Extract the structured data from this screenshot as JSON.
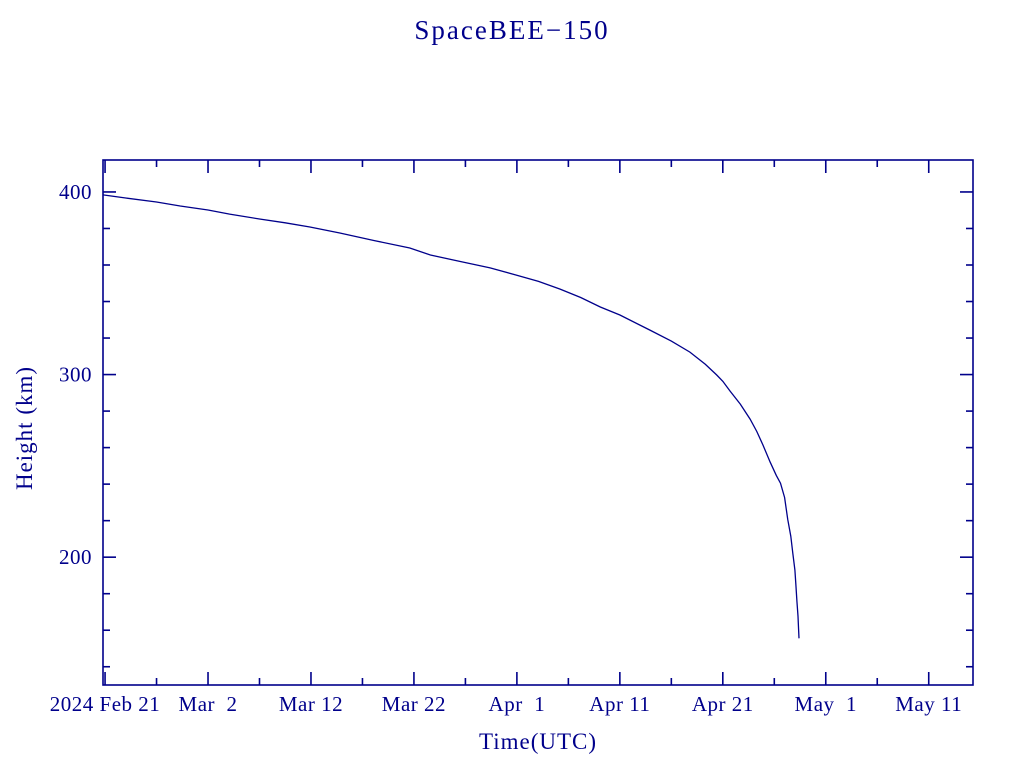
{
  "page": {
    "background": "#ffffff",
    "accent_color": "#00008B"
  },
  "chart_data": {
    "type": "line",
    "title": "SpaceBEE−150",
    "xlabel": "Time(UTC)",
    "ylabel": "Height (km)",
    "grid": false,
    "legend": null,
    "x_axis": {
      "unit": "days since 2024 Feb 21 (UTC)",
      "range_days": [
        -0.2,
        84.3
      ],
      "major_ticks": [
        {
          "day": 0,
          "label": "2024 Feb 21"
        },
        {
          "day": 10,
          "label": "Mar  2"
        },
        {
          "day": 20,
          "label": "Mar 12"
        },
        {
          "day": 30,
          "label": "Mar 22"
        },
        {
          "day": 40,
          "label": "Apr  1"
        },
        {
          "day": 50,
          "label": "Apr 11"
        },
        {
          "day": 60,
          "label": "Apr 21"
        },
        {
          "day": 70,
          "label": "May  1"
        },
        {
          "day": 80,
          "label": "May 11"
        }
      ],
      "minor_tick_days": [
        5,
        15,
        25,
        35,
        45,
        55,
        65,
        75
      ]
    },
    "y_axis": {
      "unit": "km",
      "range_km": [
        130,
        417.5
      ],
      "major_ticks": [
        {
          "km": 200,
          "label": "200"
        },
        {
          "km": 300,
          "label": "300"
        },
        {
          "km": 400,
          "label": "400"
        }
      ],
      "minor_tick_kms": [
        140,
        160,
        180,
        220,
        240,
        260,
        280,
        320,
        340,
        360,
        380
      ]
    },
    "series": [
      {
        "name": "SpaceBEE-150 orbital height",
        "color": "#00008B",
        "points_day_km": [
          [
            -0.2,
            398.4
          ],
          [
            2.0,
            396.7
          ],
          [
            5.0,
            394.5
          ],
          [
            7.3,
            392.3
          ],
          [
            10.0,
            390.1
          ],
          [
            12.1,
            387.9
          ],
          [
            15.0,
            385.2
          ],
          [
            17.5,
            383.1
          ],
          [
            19.9,
            380.8
          ],
          [
            22.8,
            377.5
          ],
          [
            26.1,
            373.4
          ],
          [
            29.6,
            369.3
          ],
          [
            31.6,
            365.5
          ],
          [
            34.5,
            361.9
          ],
          [
            37.4,
            358.4
          ],
          [
            39.9,
            354.5
          ],
          [
            42.1,
            351.0
          ],
          [
            44.2,
            346.8
          ],
          [
            46.2,
            342.2
          ],
          [
            48.1,
            337.0
          ],
          [
            50.0,
            332.6
          ],
          [
            52.9,
            324.4
          ],
          [
            55.0,
            318.3
          ],
          [
            56.8,
            312.3
          ],
          [
            58.3,
            305.6
          ],
          [
            59.4,
            299.8
          ],
          [
            60.0,
            296.3
          ],
          [
            60.7,
            291.0
          ],
          [
            61.7,
            283.8
          ],
          [
            62.65,
            275.6
          ],
          [
            63.3,
            268.8
          ],
          [
            63.9,
            261.4
          ],
          [
            64.6,
            252.0
          ],
          [
            65.2,
            244.8
          ],
          [
            65.6,
            240.5
          ],
          [
            66.0,
            232.7
          ],
          [
            66.3,
            220.8
          ],
          [
            66.6,
            211.5
          ],
          [
            66.8,
            202.2
          ],
          [
            67.0,
            193.0
          ],
          [
            67.1,
            184.7
          ],
          [
            67.2,
            176.0
          ],
          [
            67.3,
            167.7
          ],
          [
            67.35,
            161.5
          ],
          [
            67.4,
            155.6
          ]
        ]
      }
    ]
  }
}
